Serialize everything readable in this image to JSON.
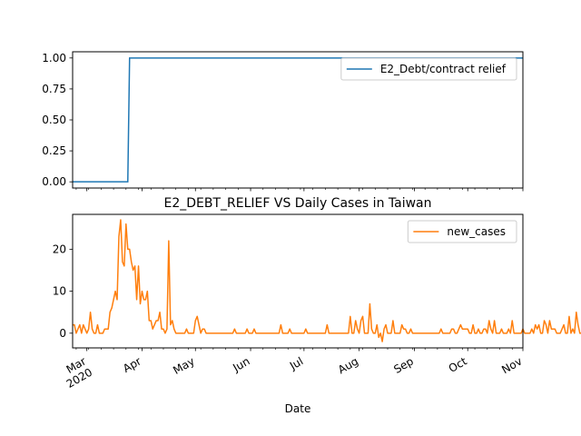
{
  "chart_data": [
    {
      "type": "line",
      "title": "",
      "xlabel": "",
      "ylabel": "",
      "x_range": [
        "2020-02-22",
        "2020-11-01"
      ],
      "ylim": [
        -0.05,
        1.05
      ],
      "yticks": [
        "0.00",
        "0.25",
        "0.50",
        "0.75",
        "1.00"
      ],
      "legend_position": "top-right",
      "grid": false,
      "series": [
        {
          "name": "E2_Debt/contract relief",
          "color": "#1f77b4",
          "points": [
            {
              "x": "2020-02-22",
              "y": 0
            },
            {
              "x": "2020-03-24",
              "y": 0
            },
            {
              "x": "2020-03-25",
              "y": 1
            },
            {
              "x": "2020-11-01",
              "y": 1
            }
          ]
        }
      ]
    },
    {
      "type": "line",
      "title": "E2_DEBT_RELIEF VS Daily Cases in Taiwan",
      "xlabel": "Date",
      "ylabel": "",
      "x_range": [
        "2020-02-22",
        "2020-11-01"
      ],
      "ylim": [
        -3.5,
        28.3
      ],
      "yticks": [
        "0",
        "10",
        "20"
      ],
      "xticks": [
        {
          "date": "2020-03-01",
          "label": "Mar",
          "sublabel": "2020"
        },
        {
          "date": "2020-04-01",
          "label": "Apr",
          "sublabel": ""
        },
        {
          "date": "2020-05-01",
          "label": "May",
          "sublabel": ""
        },
        {
          "date": "2020-06-01",
          "label": "Jun",
          "sublabel": ""
        },
        {
          "date": "2020-07-01",
          "label": "Jul",
          "sublabel": ""
        },
        {
          "date": "2020-08-01",
          "label": "Aug",
          "sublabel": ""
        },
        {
          "date": "2020-09-01",
          "label": "Sep",
          "sublabel": ""
        },
        {
          "date": "2020-10-01",
          "label": "Oct",
          "sublabel": ""
        },
        {
          "date": "2020-11-01",
          "label": "Nov",
          "sublabel": ""
        }
      ],
      "legend_position": "top-right",
      "grid": false,
      "series": [
        {
          "name": "new_cases",
          "color": "#ff7f0e",
          "start_date": "2020-02-22",
          "values": [
            2,
            2,
            0,
            1,
            2,
            0,
            2,
            1,
            0,
            1,
            5,
            1,
            0,
            0,
            2,
            0,
            0,
            0,
            1,
            1,
            1,
            5,
            6,
            8,
            10,
            8,
            23,
            27,
            17,
            16,
            26,
            20,
            20,
            17,
            15,
            16,
            8,
            16,
            7,
            10,
            8,
            8,
            10,
            3,
            3,
            1,
            2,
            3,
            3,
            5,
            1,
            1,
            0,
            1,
            22,
            2,
            3,
            1,
            0,
            0,
            0,
            0,
            0,
            0,
            1,
            0,
            0,
            0,
            0,
            3,
            4,
            2,
            0,
            1,
            1,
            0,
            0,
            0,
            0,
            0,
            0,
            0,
            0,
            0,
            0,
            0,
            0,
            0,
            0,
            0,
            0,
            1,
            0,
            0,
            0,
            0,
            0,
            0,
            1,
            0,
            0,
            0,
            1,
            0,
            0,
            0,
            0,
            0,
            0,
            0,
            0,
            0,
            0,
            0,
            0,
            0,
            0,
            2,
            0,
            0,
            0,
            0,
            1,
            0,
            0,
            0,
            0,
            0,
            0,
            0,
            0,
            1,
            0,
            0,
            0,
            0,
            0,
            0,
            0,
            0,
            0,
            0,
            0,
            2,
            0,
            0,
            0,
            0,
            0,
            0,
            0,
            0,
            0,
            0,
            0,
            0,
            4,
            0,
            0,
            3,
            1,
            0,
            3,
            4,
            0,
            0,
            0,
            7,
            1,
            0,
            0,
            2,
            -1,
            0,
            -2,
            1,
            2,
            0,
            0,
            0,
            3,
            0,
            0,
            0,
            0,
            2,
            1,
            1,
            0,
            0,
            1,
            0,
            0,
            0,
            0,
            0,
            0,
            0,
            0,
            0,
            0,
            0,
            0,
            0,
            0,
            0,
            0,
            1,
            0,
            0,
            0,
            0,
            0,
            1,
            1,
            0,
            0,
            1,
            2,
            1,
            1,
            1,
            1,
            0,
            0,
            2,
            0,
            0,
            1,
            0,
            0,
            1,
            1,
            0,
            3,
            1,
            0,
            3,
            0,
            0,
            0,
            1,
            0,
            0,
            0,
            1,
            0,
            3,
            0,
            0,
            0,
            0,
            0,
            1,
            0,
            0,
            0,
            0,
            1,
            0,
            2,
            1,
            2,
            0,
            0,
            3,
            2,
            0,
            3,
            1,
            1,
            1,
            0,
            0,
            0,
            1,
            2,
            0,
            0,
            4,
            0,
            1,
            0,
            5,
            2,
            0,
            0,
            4,
            0,
            0,
            1,
            0,
            0,
            0,
            0,
            3,
            0,
            3,
            0,
            0,
            0,
            1,
            2
          ]
        }
      ]
    }
  ]
}
